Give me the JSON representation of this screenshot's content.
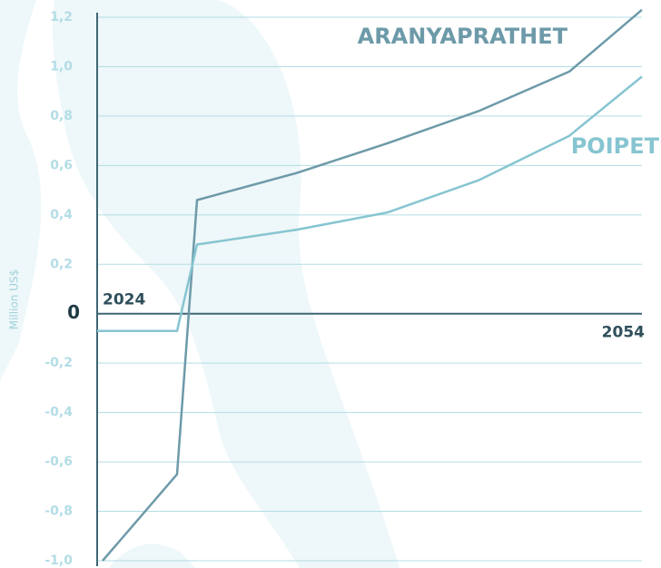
{
  "chart_data": {
    "type": "line",
    "y_label": "Million US$",
    "x": [
      2024,
      2024.3,
      2028.4,
      2029.5,
      2035,
      2040,
      2045,
      2050,
      2054
    ],
    "xlim": [
      2024,
      2054
    ],
    "xticks": [
      2024,
      2054
    ],
    "ylim": [
      -1.0,
      1.2
    ],
    "yticks": [
      {
        "value": -1.0,
        "label": "-1,0"
      },
      {
        "value": -0.8,
        "label": "-0,8"
      },
      {
        "value": -0.6,
        "label": "-0,6"
      },
      {
        "value": -0.4,
        "label": "-0,4"
      },
      {
        "value": -0.2,
        "label": "-0,2"
      },
      0,
      {
        "value": 0.2,
        "label": "0,2"
      },
      {
        "value": 0.4,
        "label": "0,4"
      },
      {
        "value": 0.6,
        "label": "0,6"
      },
      {
        "value": 0.8,
        "label": "0,8"
      },
      {
        "value": 1.0,
        "label": "1,0"
      },
      {
        "value": 1.2,
        "label": "1,2"
      }
    ],
    "grid": true,
    "series": [
      {
        "name": "ARANYAPRATHET",
        "color": "#6d9aa9",
        "values": [
          null,
          -1.0,
          -0.65,
          0.46,
          0.57,
          0.69,
          0.82,
          0.98,
          1.23
        ]
      },
      {
        "name": "POIPET",
        "color": "#86c5d1",
        "values": [
          -0.07,
          -0.07,
          -0.07,
          0.28,
          0.34,
          0.41,
          0.54,
          0.72,
          0.96
        ]
      }
    ]
  }
}
